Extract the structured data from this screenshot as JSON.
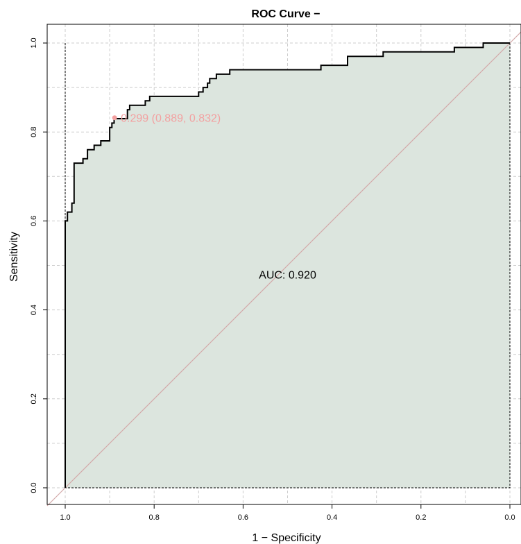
{
  "chart_data": {
    "type": "line",
    "title": "ROC Curve −",
    "xlabel": "1 − Specificity",
    "ylabel": "Sensitivity",
    "xlim": [
      1.0,
      0.0
    ],
    "ylim": [
      0.0,
      1.0
    ],
    "x_reversed": true,
    "grid": true,
    "x_ticks": [
      {
        "value": 1.0,
        "label": "1.0"
      },
      {
        "value": 0.8,
        "label": "0.8"
      },
      {
        "value": 0.6,
        "label": "0.6"
      },
      {
        "value": 0.4,
        "label": "0.4"
      },
      {
        "value": 0.2,
        "label": "0.2"
      },
      {
        "value": 0.0,
        "label": "0.0"
      }
    ],
    "y_ticks": [
      {
        "value": 0.0,
        "label": "0.0"
      },
      {
        "value": 0.2,
        "label": "0.2"
      },
      {
        "value": 0.4,
        "label": "0.4"
      },
      {
        "value": 0.6,
        "label": "0.6"
      },
      {
        "value": 0.8,
        "label": "0.8"
      },
      {
        "value": 1.0,
        "label": "1.0"
      }
    ],
    "roc_curve": {
      "x": [
        1.0,
        1.0,
        0.995,
        0.995,
        0.985,
        0.985,
        0.98,
        0.98,
        0.96,
        0.96,
        0.95,
        0.95,
        0.935,
        0.935,
        0.92,
        0.92,
        0.9,
        0.9,
        0.895,
        0.895,
        0.89,
        0.89,
        0.86,
        0.86,
        0.855,
        0.855,
        0.82,
        0.82,
        0.81,
        0.81,
        0.7,
        0.7,
        0.69,
        0.69,
        0.68,
        0.68,
        0.675,
        0.675,
        0.66,
        0.66,
        0.63,
        0.63,
        0.425,
        0.425,
        0.365,
        0.365,
        0.285,
        0.285,
        0.125,
        0.125,
        0.06,
        0.06,
        0.0
      ],
      "y": [
        0.0,
        0.6,
        0.6,
        0.62,
        0.62,
        0.64,
        0.64,
        0.73,
        0.73,
        0.74,
        0.74,
        0.76,
        0.76,
        0.77,
        0.77,
        0.78,
        0.78,
        0.81,
        0.81,
        0.82,
        0.82,
        0.83,
        0.83,
        0.85,
        0.85,
        0.86,
        0.86,
        0.87,
        0.87,
        0.88,
        0.88,
        0.89,
        0.89,
        0.9,
        0.9,
        0.91,
        0.91,
        0.92,
        0.92,
        0.93,
        0.93,
        0.94,
        0.94,
        0.95,
        0.95,
        0.97,
        0.97,
        0.98,
        0.98,
        0.99,
        0.99,
        1.0,
        1.0
      ]
    },
    "diagonal": {
      "x": [
        1.0,
        0.0
      ],
      "y": [
        0.0,
        1.0
      ]
    },
    "best_threshold": {
      "x": 0.889,
      "y": 0.832,
      "label": "0.299 (0.889, 0.832)"
    },
    "auc": {
      "text": "AUC: 0.920",
      "x": 0.5,
      "y": 0.48
    },
    "colors": {
      "curve": "#000000",
      "fill": "#dce5de",
      "diagonal": "#d3a9a9",
      "threshold": "#f3a0a0",
      "grid": "#cccccc",
      "frame": "#000000"
    }
  }
}
